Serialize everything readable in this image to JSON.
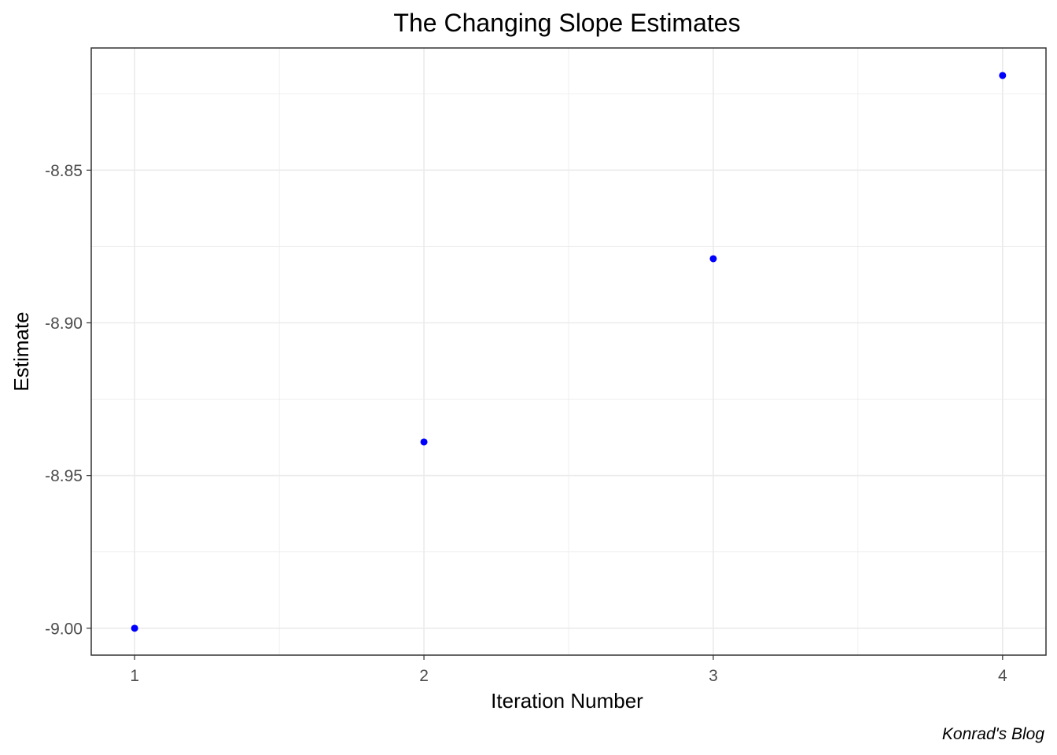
{
  "chart_data": {
    "type": "scatter",
    "title": "The Changing Slope Estimates",
    "xlabel": "Iteration Number",
    "ylabel": "Estimate",
    "caption": "Konrad's Blog",
    "x": [
      1,
      2,
      3,
      4
    ],
    "y": [
      -9.0,
      -8.939,
      -8.879,
      -8.819
    ],
    "xlim": [
      0.85,
      4.15
    ],
    "ylim": [
      -9.0088,
      -8.81
    ],
    "x_ticks": [
      1,
      2,
      3,
      4
    ],
    "x_tick_labels": [
      "1",
      "2",
      "3",
      "4"
    ],
    "y_ticks": [
      -9.0,
      -8.95,
      -8.9,
      -8.85
    ],
    "y_tick_labels": [
      "-9.00",
      "-8.95",
      "-8.90",
      "-8.85"
    ],
    "x_minor_ticks": [
      1.5,
      2.5,
      3.5
    ],
    "y_minor_ticks": [
      -8.975,
      -8.925,
      -8.875,
      -8.825
    ],
    "grid": true,
    "point_color": "#0000ff",
    "grid_color": "#ebebeb",
    "panel_border_color": "#333333"
  }
}
